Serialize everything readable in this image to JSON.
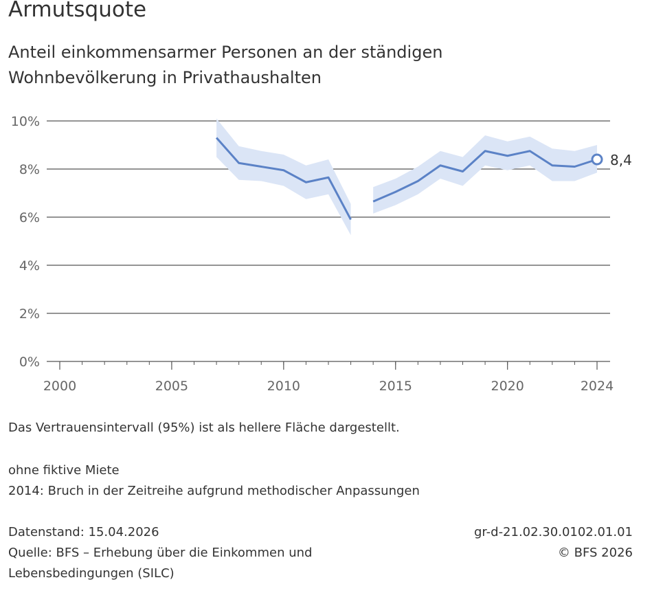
{
  "title": "Armutsquote",
  "subtitle_line1": "Anteil einkommensarmer Personen an der ständigen",
  "subtitle_line2": "Wohnbevölkerung in Privathaushalten",
  "notes": {
    "confidence": "Das Vertrauensintervall (95%) ist als hellere Fläche dargestellt.",
    "rent": "ohne fiktive Miete",
    "break": "2014: Bruch in der Zeitreihe aufgrund methodischer Anpassungen",
    "datenstand": "Datenstand: 15.04.2026",
    "quelle_line1": "Quelle: BFS – Erhebung über die Einkommen und",
    "quelle_line2": "Lebensbedingungen (SILC)",
    "code": "gr-d-21.02.30.0102.01.01",
    "copyright": "© BFS 2026"
  },
  "colors": {
    "line": "#5b82c6",
    "band": "#dbe5f6",
    "grid": "#555555",
    "text": "#333333"
  },
  "chart_data": {
    "type": "line",
    "title": "Armutsquote",
    "ylim": [
      0,
      10
    ],
    "xlim": [
      2000,
      2024
    ],
    "y_ticks": [
      "0%",
      "2%",
      "4%",
      "6%",
      "8%",
      "10%"
    ],
    "x_ticks": [
      "2000",
      "2005",
      "2010",
      "2015",
      "2020",
      "2024"
    ],
    "grid": true,
    "last_value_label": "8,4",
    "segments": [
      {
        "x": [
          2007,
          2008,
          2009,
          2010,
          2011,
          2012,
          2013
        ],
        "y": [
          9.3,
          8.25,
          8.1,
          7.95,
          7.45,
          7.65,
          5.9
        ],
        "lower": [
          8.5,
          7.55,
          7.5,
          7.3,
          6.75,
          6.95,
          5.25
        ],
        "upper": [
          10.1,
          8.95,
          8.75,
          8.6,
          8.15,
          8.4,
          6.55
        ]
      },
      {
        "x": [
          2014,
          2015,
          2016,
          2017,
          2018,
          2019,
          2020,
          2021,
          2022,
          2023,
          2024
        ],
        "y": [
          6.65,
          7.05,
          7.5,
          8.15,
          7.9,
          8.75,
          8.55,
          8.75,
          8.15,
          8.1,
          8.4
        ],
        "lower": [
          6.15,
          6.5,
          6.95,
          7.6,
          7.3,
          8.15,
          7.95,
          8.15,
          7.5,
          7.5,
          7.85
        ],
        "upper": [
          7.25,
          7.6,
          8.1,
          8.75,
          8.5,
          9.4,
          9.15,
          9.35,
          8.85,
          8.75,
          9.0
        ]
      }
    ]
  }
}
